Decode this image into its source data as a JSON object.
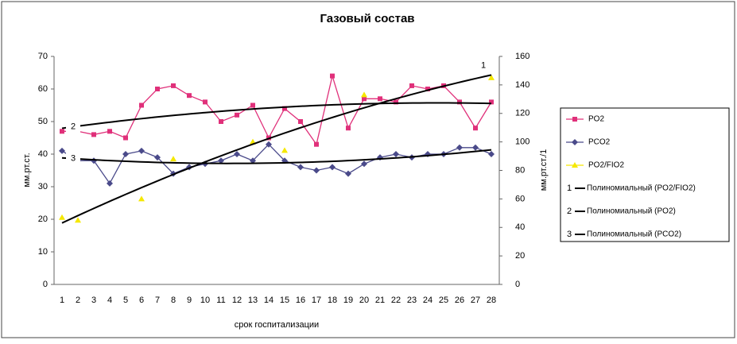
{
  "chart_data": {
    "type": "line",
    "title": "Газовый состав",
    "x_label": "срок госпитализации",
    "y_label": "мм.рт.ст.",
    "y2_label": "мм.рт.ст./1",
    "categories": [
      "1",
      "2",
      "3",
      "4",
      "5",
      "6",
      "7",
      "8",
      "9",
      "10",
      "11",
      "12",
      "13",
      "14",
      "15",
      "16",
      "17",
      "18",
      "19",
      "20",
      "21",
      "22",
      "23",
      "24",
      "25",
      "26",
      "27",
      "28"
    ],
    "ylim": [
      0,
      70
    ],
    "yticks": [
      0,
      10,
      20,
      30,
      40,
      50,
      60,
      70
    ],
    "y2lim": [
      0,
      160
    ],
    "y2ticks": [
      0,
      20,
      40,
      60,
      80,
      100,
      120,
      140,
      160
    ],
    "series": [
      {
        "name": "PO2",
        "color": "#e0307a",
        "marker": "square",
        "show_line": true,
        "values": [
          47,
          47,
          46,
          47,
          45,
          55,
          60,
          61,
          58,
          56,
          50,
          52,
          55,
          45,
          54,
          50,
          43,
          64,
          48,
          57,
          57,
          56,
          61,
          60,
          61,
          56,
          48,
          56
        ]
      },
      {
        "name": "PCO2",
        "color": "#4a4a8a",
        "marker": "diamond",
        "show_line": true,
        "values": [
          41,
          38,
          38,
          31,
          40,
          41,
          39,
          34,
          36,
          37,
          38,
          40,
          38,
          43,
          38,
          36,
          35,
          36,
          34,
          37,
          39,
          40,
          39,
          40,
          40,
          42,
          42,
          40
        ]
      },
      {
        "name": "PO2/FIO2",
        "color": "#f5e800",
        "marker": "triangle",
        "show_line": false,
        "axis": "y2",
        "values": [
          47,
          45,
          null,
          null,
          null,
          60,
          null,
          88,
          null,
          null,
          null,
          null,
          100,
          null,
          94,
          null,
          null,
          null,
          null,
          133,
          null,
          null,
          null,
          null,
          null,
          null,
          null,
          145
        ]
      }
    ],
    "trendlines": [
      {
        "label": "1",
        "name": "Полиномиальный (PO2/FIO2)",
        "series": 2,
        "order": 2,
        "color": "#000000"
      },
      {
        "label": "2",
        "name": "Полиномиальный (PO2)",
        "series": 0,
        "order": 2,
        "color": "#000000"
      },
      {
        "label": "3",
        "name": "Полиномиальный (PCO2)",
        "series": 1,
        "order": 2,
        "color": "#000000"
      }
    ]
  }
}
